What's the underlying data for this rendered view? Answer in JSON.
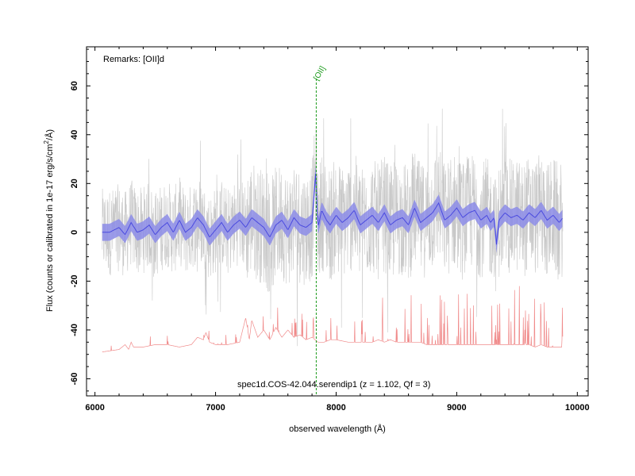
{
  "chart_data": {
    "type": "line",
    "xlabel": "observed wavelength (Å)",
    "ylabel_main": "Flux (counts or calibrated in 1e-17 erg/s/cm",
    "ylabel_sup": "2",
    "ylabel_tail": "/Å)",
    "remarks": "Remarks: [OII]d",
    "caption": "spec1d.COS-42.044.serendip1 (z = 1.102, Qf = 3)",
    "xlim": [
      5930,
      10090
    ],
    "ylim": [
      -67,
      76
    ],
    "x_ticks": [
      6000,
      7000,
      8000,
      9000,
      10000
    ],
    "x_tick_labels": [
      "6000",
      "7000",
      "8000",
      "9000",
      "10000"
    ],
    "y_ticks": [
      -60,
      -40,
      -20,
      0,
      20,
      40,
      60
    ],
    "y_tick_labels": [
      "-60",
      "-40",
      "-20",
      "0",
      "20",
      "40",
      "60"
    ],
    "grid": false,
    "emission_line": {
      "label": "[OII]",
      "wavelength": 7835,
      "color": "#1a9a1a"
    },
    "colors": {
      "raw": "#c8c8c8",
      "smooth_line": "#4a4adf",
      "smooth_band": "#8c8ce8",
      "sky": "#f08a8a"
    },
    "series": [
      {
        "role": "smoothed",
        "x": [
          6060,
          6120,
          6200,
          6250,
          6300,
          6350,
          6400,
          6450,
          6500,
          6550,
          6600,
          6650,
          6700,
          6750,
          6800,
          6850,
          6900,
          6950,
          7000,
          7050,
          7100,
          7150,
          7200,
          7250,
          7300,
          7350,
          7400,
          7450,
          7500,
          7550,
          7600,
          7650,
          7700,
          7750,
          7800,
          7830,
          7850,
          7880,
          7920,
          7950,
          8000,
          8050,
          8100,
          8150,
          8200,
          8250,
          8300,
          8350,
          8400,
          8450,
          8500,
          8550,
          8600,
          8650,
          8700,
          8750,
          8800,
          8850,
          8900,
          8950,
          9000,
          9050,
          9100,
          9150,
          9200,
          9250,
          9280,
          9310,
          9330,
          9350,
          9400,
          9450,
          9500,
          9550,
          9600,
          9650,
          9700,
          9750,
          9800,
          9850,
          9880
        ],
        "y": [
          0,
          0,
          2,
          -1,
          4,
          0,
          1,
          3,
          -1,
          2,
          4,
          0,
          5,
          0,
          2,
          6,
          3,
          -2,
          1,
          4,
          0,
          3,
          5,
          2,
          6,
          4,
          2,
          -2,
          3,
          5,
          1,
          6,
          3,
          2,
          4,
          24,
          2,
          9,
          5,
          3,
          7,
          4,
          6,
          9,
          3,
          5,
          7,
          4,
          8,
          3,
          5,
          6,
          3,
          10,
          4,
          6,
          8,
          12,
          5,
          7,
          10,
          6,
          8,
          9,
          5,
          7,
          4,
          6,
          -5,
          5,
          8,
          6,
          7,
          5,
          8,
          6,
          9,
          5,
          7,
          4,
          6
        ]
      },
      {
        "role": "sky",
        "x": [
          6060,
          6200,
          6250,
          6280,
          6300,
          6320,
          6400,
          6500,
          6600,
          6700,
          6800,
          6850,
          6900,
          6920,
          6950,
          7000,
          7100,
          7200,
          7250,
          7280,
          7300,
          7350,
          7400,
          7450,
          7500,
          7550,
          7600,
          7650,
          7700,
          7750,
          7800,
          7850,
          7900,
          7950,
          8000,
          8100,
          8200,
          8300,
          8350,
          8400,
          8450,
          8500,
          8550,
          8600,
          8650,
          8700,
          8750,
          8800,
          8850,
          8900,
          8950,
          9000,
          9100,
          9200,
          9300,
          9350,
          9400,
          9450,
          9500,
          9550,
          9600,
          9650,
          9700,
          9750,
          9800,
          9850,
          9880
        ],
        "y": [
          -49,
          -48,
          -46,
          -48,
          -45,
          -47,
          -47,
          -46,
          -46,
          -47,
          -46,
          -43,
          -44,
          -41,
          -45,
          -46,
          -46,
          -45,
          -35,
          -44,
          -36,
          -43,
          -40,
          -44,
          -39,
          -43,
          -40,
          -43,
          -42,
          -44,
          -43,
          -45,
          -45,
          -44,
          -44,
          -45,
          -45,
          -45,
          -44,
          -45,
          -44,
          -45,
          -45,
          -45,
          -45,
          -45,
          -46,
          -46,
          -46,
          -46,
          -46,
          -46,
          -46,
          -46,
          -46,
          -46,
          -46,
          -46,
          -46,
          -46,
          -46,
          -47,
          -46,
          -47,
          -47,
          -47,
          -47
        ]
      }
    ]
  }
}
